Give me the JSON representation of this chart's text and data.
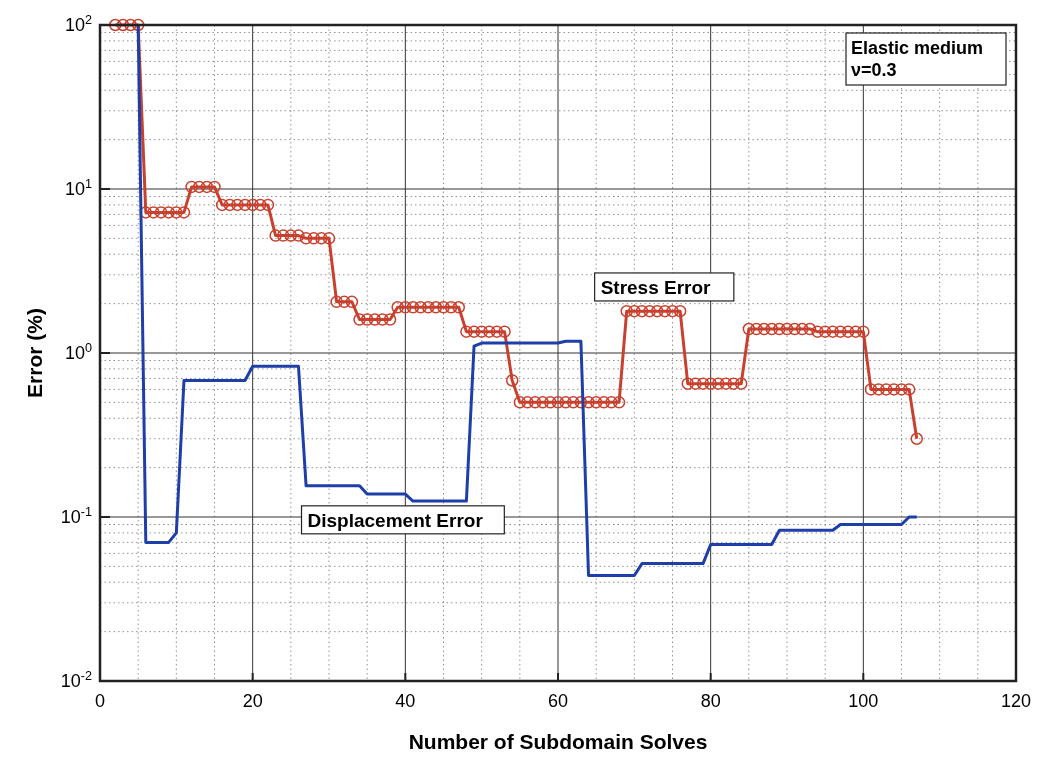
{
  "chart_data": {
    "type": "line",
    "xlabel": "Number of Subdomain Solves",
    "ylabel": "Error (%)",
    "xlim": [
      0,
      120
    ],
    "xticks": [
      0,
      20,
      40,
      60,
      80,
      100,
      120
    ],
    "ylim": [
      0.01,
      100
    ],
    "yticks": [
      {
        "value": 0.01,
        "label": "10$^{-2}$"
      },
      {
        "value": 0.1,
        "label": "10$^{-1}$"
      },
      {
        "value": 1,
        "label": "10$^{0}$"
      },
      {
        "value": 10,
        "label": "10$^{1}$"
      },
      {
        "value": 100,
        "label": "10$^{2}$"
      }
    ],
    "log": "y",
    "grid": true,
    "annotations": [
      "Elastic medium\nν=0.3"
    ],
    "series": [
      {
        "name": "Stress Error",
        "color": "#c8412e",
        "marker": "circle",
        "x": [
          2,
          3,
          4,
          5,
          6,
          7,
          8,
          9,
          10,
          11,
          12,
          13,
          14,
          15,
          16,
          17,
          18,
          19,
          20,
          21,
          22,
          23,
          24,
          25,
          26,
          27,
          28,
          29,
          30,
          31,
          32,
          33,
          34,
          35,
          36,
          37,
          38,
          39,
          40,
          41,
          42,
          43,
          44,
          45,
          46,
          47,
          48,
          49,
          50,
          51,
          52,
          53,
          54,
          55,
          56,
          57,
          58,
          59,
          60,
          61,
          62,
          63,
          64,
          65,
          66,
          67,
          68,
          69,
          70,
          71,
          72,
          73,
          74,
          75,
          76,
          77,
          78,
          79,
          80,
          81,
          82,
          83,
          84,
          85,
          86,
          87,
          88,
          89,
          90,
          91,
          92,
          93,
          94,
          95,
          96,
          97,
          98,
          99,
          100,
          101,
          102,
          103,
          104,
          105,
          106,
          107
        ],
        "values": [
          100,
          100,
          100,
          100,
          7.2,
          7.2,
          7.2,
          7.2,
          7.2,
          7.2,
          10.3,
          10.3,
          10.3,
          10.3,
          8,
          8,
          8,
          8,
          8,
          8,
          8,
          5.2,
          5.2,
          5.2,
          5.2,
          5,
          5,
          5,
          5,
          2.05,
          2.05,
          2.05,
          1.6,
          1.6,
          1.6,
          1.6,
          1.6,
          1.9,
          1.9,
          1.9,
          1.9,
          1.9,
          1.9,
          1.9,
          1.9,
          1.9,
          1.35,
          1.35,
          1.35,
          1.35,
          1.35,
          1.35,
          0.68,
          0.5,
          0.5,
          0.5,
          0.5,
          0.5,
          0.5,
          0.5,
          0.5,
          0.5,
          0.5,
          0.5,
          0.5,
          0.5,
          0.5,
          1.8,
          1.8,
          1.8,
          1.8,
          1.8,
          1.8,
          1.8,
          1.8,
          0.65,
          0.65,
          0.65,
          0.65,
          0.65,
          0.65,
          0.65,
          0.65,
          1.4,
          1.4,
          1.4,
          1.4,
          1.4,
          1.4,
          1.4,
          1.4,
          1.4,
          1.35,
          1.35,
          1.35,
          1.35,
          1.35,
          1.35,
          1.35,
          0.6,
          0.6,
          0.6,
          0.6,
          0.6,
          0.6,
          0.3
        ]
      },
      {
        "name": "Displacement Error",
        "color": "#1f3fa8",
        "marker": "none",
        "x": [
          5,
          6,
          9,
          10,
          11,
          19,
          20,
          26,
          27,
          34,
          35,
          40,
          41,
          48,
          49,
          50,
          60,
          61,
          63,
          64,
          70,
          71,
          79,
          80,
          88,
          89,
          96,
          97,
          105,
          106,
          107
        ],
        "values": [
          100,
          0.07,
          0.07,
          0.08,
          0.68,
          0.68,
          0.83,
          0.83,
          0.155,
          0.155,
          0.138,
          0.138,
          0.125,
          0.125,
          1.1,
          1.15,
          1.15,
          1.18,
          1.18,
          0.044,
          0.044,
          0.052,
          0.052,
          0.068,
          0.068,
          0.083,
          0.083,
          0.09,
          0.09,
          0.1,
          0.1
        ]
      }
    ]
  }
}
